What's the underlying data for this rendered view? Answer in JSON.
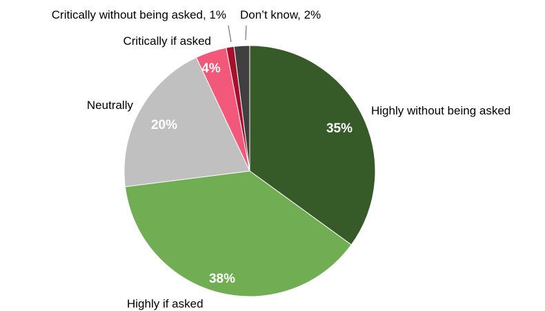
{
  "chart_data": {
    "type": "pie",
    "title": "",
    "start_angle_deg": 0,
    "direction": "clockwise",
    "slices": [
      {
        "name": "Highly without being asked",
        "value": 35,
        "value_label": "35%",
        "outside_label": "Highly without being asked",
        "color": "#375a29"
      },
      {
        "name": "Highly if asked",
        "value": 38,
        "value_label": "38%",
        "outside_label": "Highly if asked",
        "color": "#70ad53"
      },
      {
        "name": "Neutrally",
        "value": 20,
        "value_label": "20%",
        "outside_label": "Neutrally",
        "color": "#c0c0c0"
      },
      {
        "name": "Critically if asked",
        "value": 4,
        "value_label": "4%",
        "outside_label": "Critically if asked",
        "color": "#f2587a"
      },
      {
        "name": "Critically without being asked",
        "value": 1,
        "value_label": "",
        "outside_label": "Critically without being asked, 1%",
        "color": "#a7102c"
      },
      {
        "name": "Don’t know",
        "value": 2,
        "value_label": "",
        "outside_label": "Don’t know, 2%",
        "color": "#404040"
      }
    ]
  }
}
